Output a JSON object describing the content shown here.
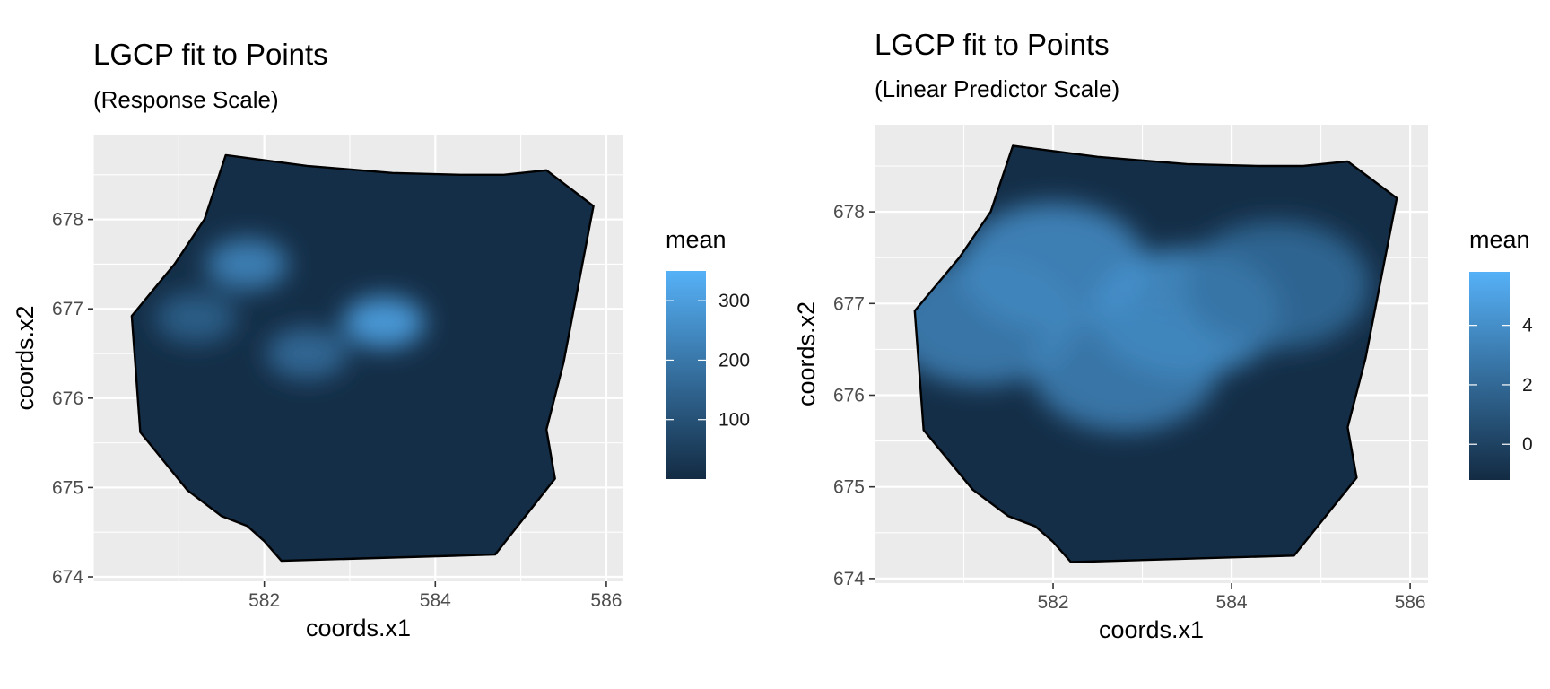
{
  "chart_data": [
    {
      "type": "heatmap",
      "title": "LGCP fit to Points",
      "subtitle": "(Response Scale)",
      "xlabel": "coords.x1",
      "ylabel": "coords.x2",
      "xlim": [
        580.0,
        586.2
      ],
      "ylim": [
        673.95,
        678.95
      ],
      "x_ticks": [
        582,
        584,
        586
      ],
      "y_ticks": [
        674,
        675,
        676,
        677,
        678
      ],
      "grid": true,
      "legend": {
        "title": "mean",
        "position": "right",
        "range": [
          0,
          350
        ],
        "ticks": [
          100,
          200,
          300
        ],
        "color_low": "#132B43",
        "color_high": "#56B1F7"
      },
      "boundary": [
        [
          581.55,
          678.72
        ],
        [
          582.5,
          678.6
        ],
        [
          583.5,
          678.52
        ],
        [
          584.3,
          678.5
        ],
        [
          584.8,
          678.5
        ],
        [
          585.3,
          678.55
        ],
        [
          585.85,
          678.15
        ],
        [
          585.5,
          676.4
        ],
        [
          585.3,
          675.65
        ],
        [
          585.4,
          675.1
        ],
        [
          584.7,
          674.25
        ],
        [
          582.2,
          674.18
        ],
        [
          582.0,
          674.4
        ],
        [
          581.8,
          674.57
        ],
        [
          581.5,
          674.68
        ],
        [
          581.1,
          674.97
        ],
        [
          580.55,
          675.62
        ],
        [
          580.45,
          676.92
        ],
        [
          580.95,
          677.5
        ],
        [
          581.3,
          678.0
        ],
        [
          581.55,
          678.72
        ]
      ],
      "hotspots": [
        {
          "x": 583.4,
          "y": 676.85,
          "mean": 330
        },
        {
          "x": 581.8,
          "y": 677.5,
          "mean": 250
        },
        {
          "x": 582.5,
          "y": 676.5,
          "mean": 180
        },
        {
          "x": 581.2,
          "y": 676.9,
          "mean": 150
        }
      ]
    },
    {
      "type": "heatmap",
      "title": "LGCP fit to Points",
      "subtitle": "(Linear Predictor Scale)",
      "xlabel": "coords.x1",
      "ylabel": "coords.x2",
      "xlim": [
        580.0,
        586.2
      ],
      "ylim": [
        673.95,
        678.95
      ],
      "x_ticks": [
        582,
        584,
        586
      ],
      "y_ticks": [
        674,
        675,
        676,
        677,
        678
      ],
      "grid": true,
      "legend": {
        "title": "mean",
        "position": "right",
        "range": [
          -1.2,
          5.8
        ],
        "ticks": [
          0,
          2,
          4
        ],
        "color_low": "#132B43",
        "color_high": "#56B1F7"
      },
      "boundary": [
        [
          581.55,
          678.72
        ],
        [
          582.5,
          678.6
        ],
        [
          583.5,
          678.52
        ],
        [
          584.3,
          678.5
        ],
        [
          584.8,
          678.5
        ],
        [
          585.3,
          678.55
        ],
        [
          585.85,
          678.15
        ],
        [
          585.5,
          676.4
        ],
        [
          585.3,
          675.65
        ],
        [
          585.4,
          675.1
        ],
        [
          584.7,
          674.25
        ],
        [
          582.2,
          674.18
        ],
        [
          582.0,
          674.4
        ],
        [
          581.8,
          674.57
        ],
        [
          581.5,
          674.68
        ],
        [
          581.1,
          674.97
        ],
        [
          580.55,
          675.62
        ],
        [
          580.45,
          676.92
        ],
        [
          580.95,
          677.5
        ],
        [
          581.3,
          678.0
        ],
        [
          581.55,
          678.72
        ]
      ],
      "hotspots": [
        {
          "x": 583.5,
          "y": 676.9,
          "mean": 4.5
        },
        {
          "x": 582.0,
          "y": 677.4,
          "mean": 4.2
        },
        {
          "x": 581.2,
          "y": 676.8,
          "mean": 3.6
        },
        {
          "x": 582.8,
          "y": 676.3,
          "mean": 3.6
        },
        {
          "x": 584.5,
          "y": 677.2,
          "mean": 2.5
        }
      ]
    }
  ]
}
